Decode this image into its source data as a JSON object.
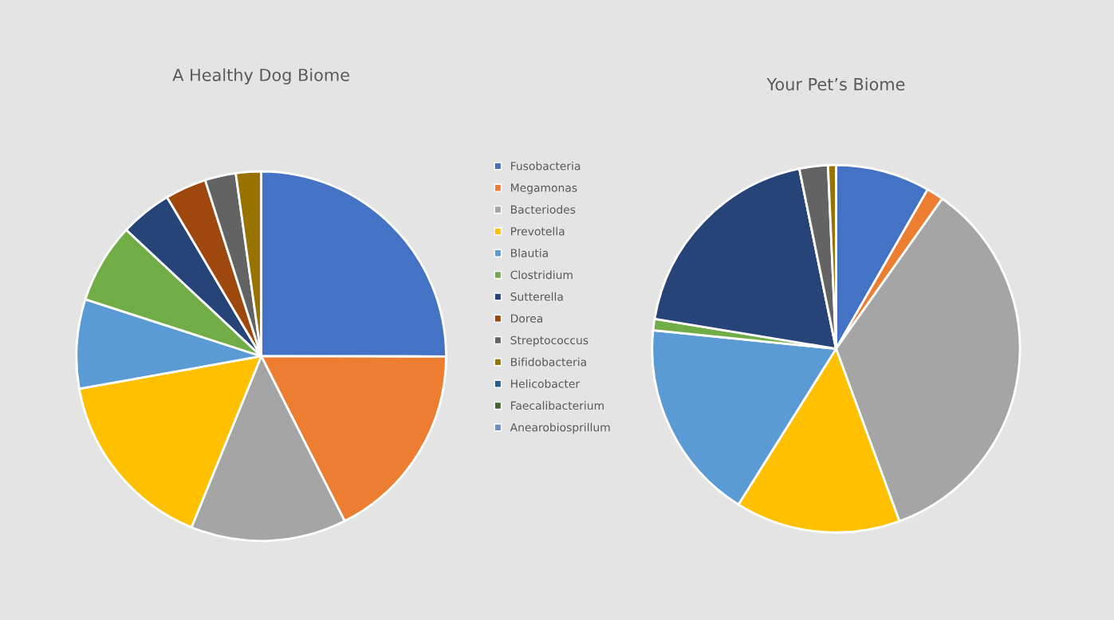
{
  "chart_data": [
    {
      "type": "pie",
      "title": "A Healthy Dog Biome",
      "legend": "right",
      "categories": [
        "Fusobacteria",
        "Megamonas",
        "Bacteriodes",
        "Prevotella",
        "Blautia",
        "Clostridium",
        "Sutterella",
        "Dorea",
        "Streptococcus",
        "Bifidobacteria",
        "Helicobacter",
        "Faecalibacterium",
        "Anearobiosprillum"
      ],
      "values": [
        25,
        17.5,
        13.6,
        16,
        7.8,
        7,
        4.5,
        3.6,
        2.7,
        2.2,
        0,
        0,
        0
      ],
      "colors": [
        "#4472c4",
        "#ed7d31",
        "#a5a5a5",
        "#ffc000",
        "#5b9bd5",
        "#70ad47",
        "#264478",
        "#9e480e",
        "#636363",
        "#997300",
        "#255e91",
        "#43682b",
        "#698ed0"
      ]
    },
    {
      "type": "pie",
      "title": "Your Pet’s Biome",
      "categories": [
        null,
        null,
        null,
        null,
        null,
        null,
        null,
        null,
        null,
        null,
        null,
        null,
        null
      ],
      "values": [
        8.3,
        1.5,
        34.6,
        14.5,
        17.7,
        1,
        19.2,
        0,
        2.5,
        0.7,
        0,
        0,
        0
      ],
      "colors": [
        "#4472c4",
        "#ed7d31",
        "#a5a5a5",
        "#ffc000",
        "#5b9bd5",
        "#70ad47",
        "#264478",
        "#9e480e",
        "#636363",
        "#997300",
        "#255e91",
        "#43682b",
        "#698ed0"
      ]
    }
  ]
}
